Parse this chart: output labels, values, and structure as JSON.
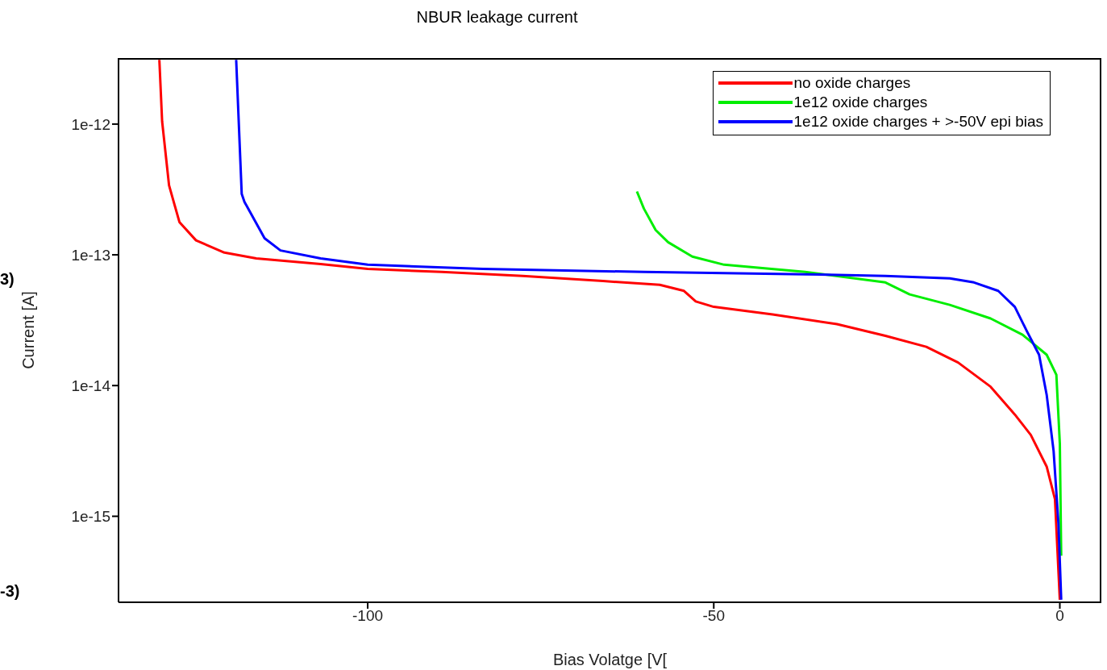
{
  "chart_data": {
    "type": "line",
    "title": "NBUR leakage current",
    "xlabel": "Bias Volatge [V[",
    "ylabel": "Current [A]",
    "log": "y",
    "legend": "top right",
    "line_style": "solid",
    "xlim": [
      -136,
      6
    ],
    "xticks": [
      -100,
      -50,
      0
    ],
    "ylim": [
      2.2e-16,
      3.2e-12
    ],
    "yticks": [
      {
        "value": 1e-15,
        "label": "1e-15"
      },
      {
        "value": 1e-14,
        "label": "1e-14"
      },
      {
        "value": 1e-13,
        "label": "1e-13"
      },
      {
        "value": 1e-12,
        "label": "1e-12"
      }
    ],
    "annotations": [
      "3)",
      "-3)"
    ],
    "series": [
      {
        "name": "no oxide charges",
        "color": "#ff0000",
        "x": [
          -130.1,
          -129.7,
          -128.7,
          -127.2,
          -124.8,
          -120.7,
          -116.1,
          -106.8,
          -100,
          -89.3,
          -77.6,
          -66,
          -57.8,
          -54.3,
          -52.6,
          -50,
          -41.5,
          -32.2,
          -25.2,
          -19.3,
          -14.7,
          -10,
          -6.5,
          -4.2,
          -1.9,
          -0.7,
          0
        ],
        "values": [
          3.1e-12,
          1.05e-12,
          3.4e-13,
          1.78e-13,
          1.29e-13,
          1.04e-13,
          9.4e-14,
          8.5e-14,
          7.8e-14,
          7.4e-14,
          6.9e-14,
          6.3e-14,
          5.9e-14,
          5.3e-14,
          4.4e-14,
          4e-14,
          3.5e-14,
          2.95e-14,
          2.4e-14,
          1.98e-14,
          1.5e-14,
          9.8e-15,
          6e-15,
          4.2e-15,
          2.4e-15,
          1.35e-15,
          2.3e-16
        ]
      },
      {
        "name": "1e12 oxide charges",
        "color": "#00ee00",
        "x": [
          -61.1,
          -60.1,
          -58.4,
          -56.6,
          -53.1,
          -48.5,
          -36.8,
          -25.2,
          -21.7,
          -15.9,
          -10,
          -5.4,
          -1.9,
          -0.5,
          0,
          0.2
        ],
        "values": [
          3.05e-13,
          2.26e-13,
          1.55e-13,
          1.25e-13,
          9.7e-14,
          8.4e-14,
          7.4e-14,
          6.15e-14,
          4.98e-14,
          4.14e-14,
          3.26e-14,
          2.45e-14,
          1.72e-14,
          1.21e-14,
          3.6e-15,
          5e-16
        ]
      },
      {
        "name": "1e12 oxide charges + >-50V epi bias",
        "color": "#0000ff",
        "x": [
          -119,
          -118.2,
          -117.8,
          -114.9,
          -112.6,
          -106.8,
          -100,
          -83.4,
          -60.1,
          -36.8,
          -25.2,
          -15.9,
          -12.4,
          -8.9,
          -6.5,
          -4.8,
          -3.0,
          -1.9,
          -0.9,
          -0.2,
          0.2
        ],
        "values": [
          3.1e-12,
          2.92e-13,
          2.54e-13,
          1.34e-13,
          1.08e-13,
          9.4e-14,
          8.4e-14,
          7.8e-14,
          7.4e-14,
          7.1e-14,
          6.9e-14,
          6.6e-14,
          6.15e-14,
          5.3e-14,
          4e-14,
          2.63e-14,
          1.72e-14,
          8.5e-15,
          3.16e-15,
          8.8e-16,
          2.3e-16
        ]
      }
    ]
  }
}
